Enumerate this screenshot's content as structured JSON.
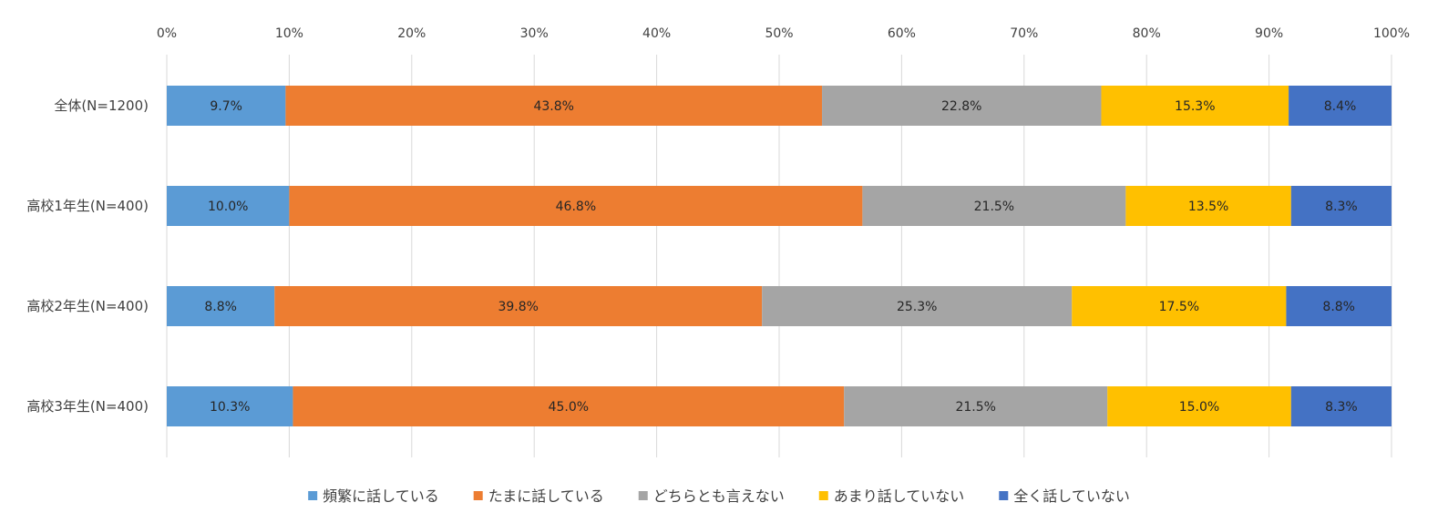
{
  "chart_data": {
    "type": "bar",
    "orientation": "horizontal",
    "stacked": true,
    "percent_axis": true,
    "categories": [
      "全体(N=1200)",
      "高校1年生(N=400)",
      "高校2年生(N=400)",
      "高校3年生(N=400)"
    ],
    "series": [
      {
        "name": "頻繁に話している",
        "color": "#5B9BD5",
        "values": [
          9.7,
          10.0,
          8.8,
          10.3
        ]
      },
      {
        "name": "たまに話している",
        "color": "#ED7D31",
        "values": [
          43.8,
          46.8,
          39.8,
          45.0
        ]
      },
      {
        "name": "どちらとも言えない",
        "color": "#A5A5A5",
        "values": [
          22.8,
          21.5,
          25.3,
          21.5
        ]
      },
      {
        "name": "あまり話していない",
        "color": "#FFC000",
        "values": [
          15.3,
          13.5,
          17.5,
          15.0
        ]
      },
      {
        "name": "全く話していない",
        "color": "#4472C4",
        "values": [
          8.4,
          8.3,
          8.8,
          8.3
        ]
      }
    ],
    "data_labels": [
      [
        "9.7%",
        "10.0%",
        "8.8%",
        "10.3%"
      ],
      [
        "43.8%",
        "46.8%",
        "39.8%",
        "45.0%"
      ],
      [
        "22.8%",
        "21.5%",
        "25.3%",
        "21.5%"
      ],
      [
        "15.3%",
        "13.5%",
        "17.5%",
        "15.0%"
      ],
      [
        "8.4%",
        "8.3%",
        "8.8%",
        "8.3%"
      ]
    ],
    "x_ticks": [
      "0%",
      "10%",
      "20%",
      "30%",
      "40%",
      "50%",
      "60%",
      "70%",
      "80%",
      "90%",
      "100%"
    ],
    "xlim": [
      0,
      100
    ],
    "xaxis_position": "top",
    "grid": true,
    "legend_position": "bottom"
  }
}
